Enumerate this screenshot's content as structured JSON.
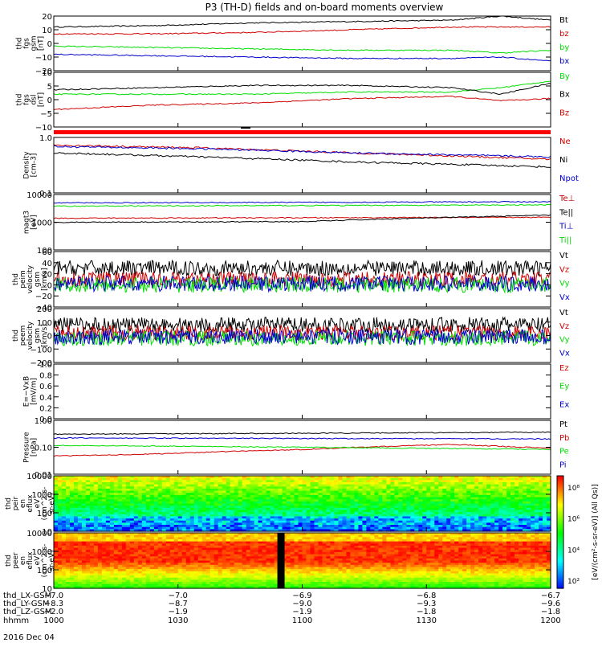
{
  "title": "P3 (TH-D) fields and on-board moments overview",
  "date_label": "2016 Dec 04",
  "colors": {
    "black": "#000000",
    "red": "#d00000",
    "green": "#00dd00",
    "blue": "#0000cc",
    "axis": "#000000"
  },
  "chart_data": [
    {
      "type": "line",
      "panel": "fgs-gsm",
      "ylabel_lines": [
        "thd",
        "fgs",
        "gsm",
        "[nT]"
      ],
      "ylim": [
        -20,
        20
      ],
      "yticks": [
        "20",
        "10",
        "0",
        "−10",
        "−20"
      ],
      "series": [
        {
          "name": "Bt",
          "color": "#000000",
          "x": [
            0,
            0.2,
            0.4,
            0.6,
            0.8,
            0.9,
            1.0
          ],
          "values": [
            12,
            13,
            15,
            16,
            17,
            20,
            17
          ]
        },
        {
          "name": "bz",
          "color": "#d00000",
          "x": [
            0,
            0.2,
            0.4,
            0.6,
            0.8,
            0.9,
            1.0
          ],
          "values": [
            7,
            7,
            8,
            10,
            12,
            12,
            12
          ]
        },
        {
          "name": "by",
          "color": "#00dd00",
          "x": [
            0,
            0.2,
            0.4,
            0.6,
            0.8,
            0.9,
            1.0
          ],
          "values": [
            -2,
            -3,
            -4,
            -5,
            -5,
            -7,
            -5
          ]
        },
        {
          "name": "bx",
          "color": "#0000cc",
          "x": [
            0,
            0.2,
            0.4,
            0.6,
            0.8,
            0.9,
            1.0
          ],
          "values": [
            -8,
            -9,
            -10,
            -11,
            -11,
            -10,
            -13
          ]
        }
      ]
    },
    {
      "type": "line",
      "panel": "fgs-dsl",
      "ylabel_lines": [
        "thd",
        "fgs",
        "dsl",
        "[nT]"
      ],
      "ylim": [
        -15,
        10
      ],
      "yticks": [
        "10",
        "5",
        "0",
        "−5",
        "−10"
      ],
      "series": [
        {
          "name": "By",
          "color": "#00dd00",
          "x": [
            0,
            0.2,
            0.4,
            0.6,
            0.8,
            0.9,
            1.0
          ],
          "values": [
            0,
            0,
            0,
            1,
            1,
            3,
            6
          ]
        },
        {
          "name": "Bx",
          "color": "#000000",
          "x": [
            0,
            0.2,
            0.4,
            0.6,
            0.8,
            0.9,
            1.0
          ],
          "values": [
            2,
            3,
            4,
            4,
            3,
            0,
            5
          ]
        },
        {
          "name": "Bz",
          "color": "#d00000",
          "x": [
            0,
            0.2,
            0.4,
            0.6,
            0.8,
            0.9,
            1.0
          ],
          "values": [
            -7,
            -5,
            -4,
            -2,
            -1,
            -3,
            -2
          ]
        }
      ]
    },
    {
      "type": "line",
      "panel": "density",
      "ylabel_lines": [
        "Density",
        "[cm-3]"
      ],
      "ylog": true,
      "ylim": [
        0.1,
        1.2
      ],
      "yticks": [
        "1.0",
        "0.1"
      ],
      "series": [
        {
          "name": "Ne",
          "color": "#d00000",
          "x": [
            0,
            0.3,
            0.6,
            1.0
          ],
          "values": [
            0.85,
            0.75,
            0.6,
            0.45
          ]
        },
        {
          "name": "Ni",
          "color": "#000000",
          "x": [
            0,
            0.3,
            0.6,
            1.0
          ],
          "values": [
            0.6,
            0.5,
            0.4,
            0.32
          ]
        },
        {
          "name": "Npot",
          "color": "#0000cc",
          "x": [
            0,
            0.3,
            0.6,
            1.0
          ],
          "values": [
            0.8,
            0.72,
            0.6,
            0.5
          ]
        }
      ]
    },
    {
      "type": "line",
      "panel": "temperature",
      "ylabel_lines": [
        "magt3",
        "[eV]"
      ],
      "ylog": true,
      "ylim": [
        100,
        10000
      ],
      "yticks": [
        "10000",
        "1000",
        "100"
      ],
      "series": [
        {
          "name": "Te⊥",
          "color": "#d00000",
          "x": [
            0,
            0.5,
            1.0
          ],
          "values": [
            1400,
            1450,
            1500
          ]
        },
        {
          "name": "Te||",
          "color": "#000000",
          "x": [
            0,
            0.5,
            1.0
          ],
          "values": [
            1000,
            1050,
            1800
          ]
        },
        {
          "name": "Ti⊥",
          "color": "#0000cc",
          "x": [
            0,
            0.5,
            1.0
          ],
          "values": [
            5000,
            5200,
            5500
          ]
        },
        {
          "name": "Ti||",
          "color": "#00dd00",
          "x": [
            0,
            0.5,
            1.0
          ],
          "values": [
            3800,
            4000,
            4200
          ]
        }
      ]
    },
    {
      "type": "line",
      "panel": "peim-velocity",
      "ylabel_lines": [
        "thd",
        "peim",
        "velocity",
        "gsm",
        "[km/s]"
      ],
      "ylim": [
        -40,
        60
      ],
      "yticks": [
        "60",
        "40",
        "20",
        "0",
        "−20",
        "−40"
      ],
      "series": [
        {
          "name": "Vt",
          "color": "#000000",
          "values_mean": 30
        },
        {
          "name": "Vz",
          "color": "#d00000",
          "values_mean": 10
        },
        {
          "name": "Vy",
          "color": "#00dd00",
          "values_mean": 0
        },
        {
          "name": "Vx",
          "color": "#0000cc",
          "values_mean": 2
        }
      ]
    },
    {
      "type": "line",
      "panel": "peem-velocity",
      "ylabel_lines": [
        "thd",
        "peem",
        "velocity",
        "gsm",
        "[km/s]"
      ],
      "ylim": [
        -200,
        200
      ],
      "yticks": [
        "200",
        "100",
        "0",
        "−100",
        "−200"
      ],
      "series": [
        {
          "name": "Vt",
          "color": "#000000",
          "values_mean": 80
        },
        {
          "name": "Vz",
          "color": "#d00000",
          "values_mean": 20
        },
        {
          "name": "Vy",
          "color": "#00dd00",
          "values_mean": -20
        },
        {
          "name": "Vx",
          "color": "#0000cc",
          "values_mean": -10
        }
      ]
    },
    {
      "type": "line",
      "panel": "efield",
      "ylabel_lines": [
        "E=−VxB",
        "[mV/m]"
      ],
      "ylim": [
        0,
        1
      ],
      "yticks": [
        "1.0",
        "0.8",
        "0.6",
        "0.4",
        "0.2",
        "0.0"
      ],
      "series": [
        {
          "name": "Ez",
          "color": "#d00000"
        },
        {
          "name": "Ey",
          "color": "#00dd00"
        },
        {
          "name": "Ex",
          "color": "#0000cc"
        }
      ]
    },
    {
      "type": "line",
      "panel": "pressure",
      "ylabel_lines": [
        "Pressure",
        "[nPa]"
      ],
      "ylog": true,
      "ylim": [
        0.01,
        1.2
      ],
      "yticks": [
        "1.00",
        "0.10",
        "0.01"
      ],
      "series": [
        {
          "name": "Pt",
          "color": "#000000",
          "x": [
            0,
            0.5,
            1.0
          ],
          "values": [
            0.35,
            0.38,
            0.42
          ]
        },
        {
          "name": "Pb",
          "color": "#d00000",
          "x": [
            0,
            0.2,
            0.5,
            0.8,
            1.0
          ],
          "values": [
            0.05,
            0.06,
            0.09,
            0.14,
            0.1
          ]
        },
        {
          "name": "Pe",
          "color": "#00dd00",
          "x": [
            0,
            0.5,
            1.0
          ],
          "values": [
            0.13,
            0.11,
            0.09
          ]
        },
        {
          "name": "Pi",
          "color": "#0000cc",
          "x": [
            0,
            0.5,
            1.0
          ],
          "values": [
            0.25,
            0.24,
            0.23
          ]
        }
      ]
    },
    {
      "type": "heatmap",
      "panel": "peir-spectrogram",
      "ylabel_lines": [
        "thd",
        "peir",
        "en",
        "eflux",
        "eV",
        "(cm^2-s-",
        "sr-eV)"
      ],
      "ylog": true,
      "ylim": [
        8,
        20000
      ],
      "yticks": [
        "10000",
        "1000",
        "100",
        "10"
      ]
    },
    {
      "type": "heatmap",
      "panel": "peer-spectrogram",
      "ylabel_lines": [
        "thd",
        "peer",
        "en",
        "eflux",
        "eV",
        "(cm^2-s-",
        "sr-eV)"
      ],
      "ylog": true,
      "ylim": [
        8,
        20000
      ],
      "yticks": [
        "10000",
        "1000",
        "100",
        "10"
      ]
    }
  ],
  "colorbar": {
    "ticks": [
      "10⁸",
      "10⁶",
      "10⁴",
      "10²"
    ],
    "label": "[eV/(cm²-s-sr-eV)] (All Qs)]"
  },
  "xaxis": {
    "row_labels": [
      "thd_LX-GSM",
      "thd_LY-GSM",
      "thd_LZ-GSM",
      "hhmm"
    ],
    "columns": [
      {
        "lx": "−7.0",
        "ly": "−8.3",
        "lz": "−2.0",
        "hhmm": "1000"
      },
      {
        "lx": "−7.0",
        "ly": "−8.7",
        "lz": "−1.9",
        "hhmm": "1030"
      },
      {
        "lx": "−6.9",
        "ly": "−9.0",
        "lz": "−1.9",
        "hhmm": "1100"
      },
      {
        "lx": "−6.8",
        "ly": "−9.3",
        "lz": "−1.8",
        "hhmm": "1130"
      },
      {
        "lx": "−6.7",
        "ly": "−9.6",
        "lz": "−1.8",
        "hhmm": "1200"
      }
    ]
  }
}
